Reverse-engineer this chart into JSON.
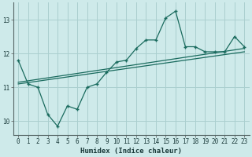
{
  "title": "",
  "xlabel": "Humidex (Indice chaleur)",
  "bg_color": "#ceeaea",
  "line_color": "#1a6b5e",
  "grid_color": "#aacfcf",
  "xlim": [
    -0.5,
    23.5
  ],
  "ylim": [
    9.6,
    13.5
  ],
  "xticks": [
    0,
    1,
    2,
    3,
    4,
    5,
    6,
    7,
    8,
    9,
    10,
    11,
    12,
    13,
    14,
    15,
    16,
    17,
    18,
    19,
    20,
    21,
    22,
    23
  ],
  "yticks": [
    10,
    11,
    12,
    13
  ],
  "main_data_x": [
    0,
    1,
    2,
    3,
    4,
    5,
    6,
    7,
    8,
    9,
    10,
    11,
    12,
    13,
    14,
    15,
    16,
    17,
    18,
    19,
    20,
    21,
    22,
    23
  ],
  "main_data_y": [
    11.8,
    11.1,
    11.0,
    10.2,
    9.85,
    10.45,
    10.35,
    11.0,
    11.1,
    11.45,
    11.75,
    11.8,
    12.15,
    12.4,
    12.4,
    13.05,
    13.25,
    12.2,
    12.2,
    12.05,
    12.05,
    12.05,
    12.5,
    12.2
  ],
  "trend1_x": [
    0,
    23
  ],
  "trend1_y": [
    11.1,
    12.05
  ],
  "trend2_x": [
    0,
    23
  ],
  "trend2_y": [
    11.15,
    12.15
  ]
}
